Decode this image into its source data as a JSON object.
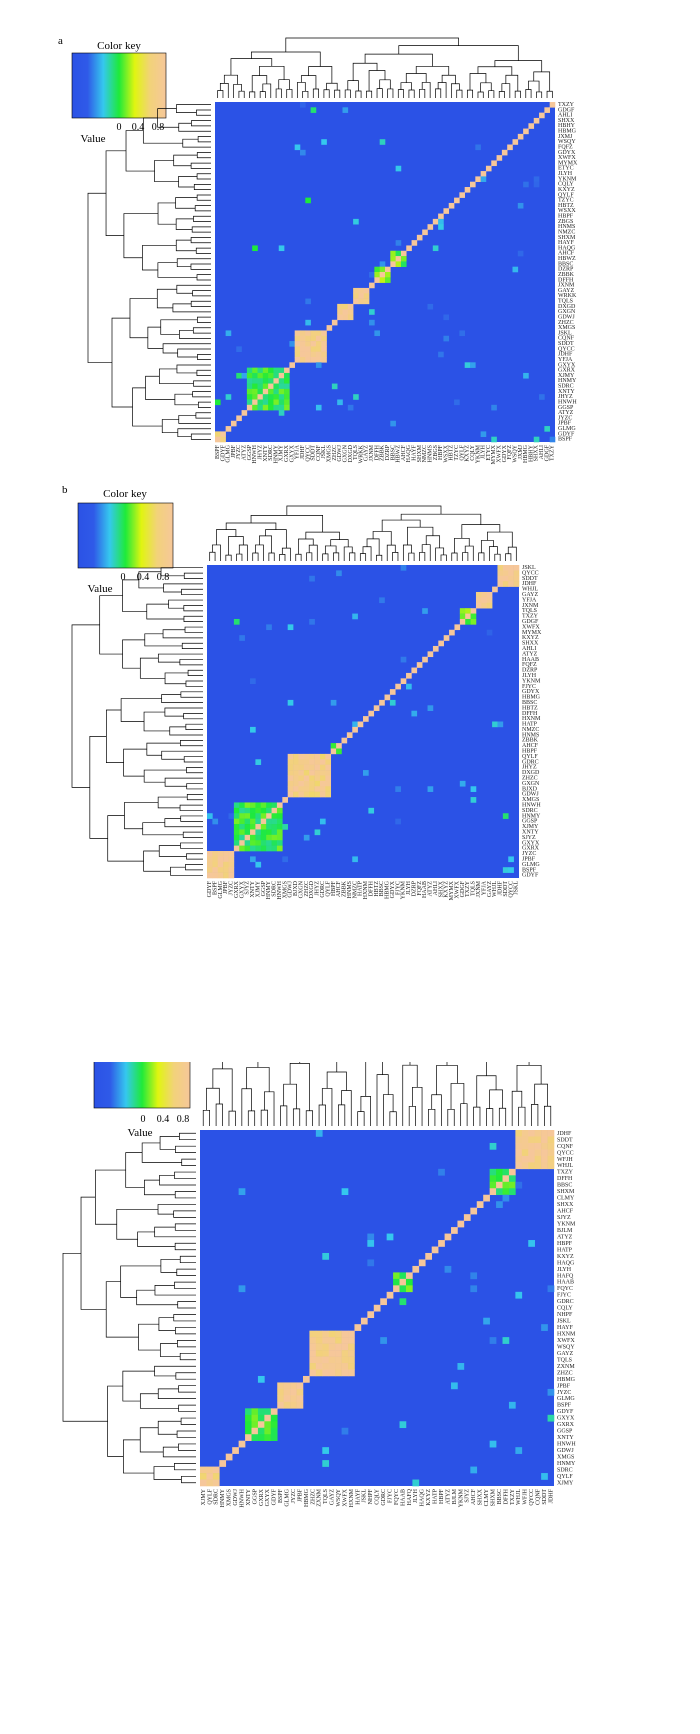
{
  "panels": [
    {
      "panel_label": "a",
      "key_title": "Color key",
      "key_ticks": [
        "0",
        "0.4",
        "0.8"
      ],
      "key_xlabel": "Value",
      "row_labels": [
        "TXZY",
        "GDGF",
        "AHLI",
        "SHXX",
        "HBHY",
        "HBMG",
        "JXMJ",
        "WSQY",
        "FQFZ",
        "GDYX",
        "XWFX",
        "MYMX",
        "ETYC",
        "JLYH",
        "YKNM",
        "CQLY",
        "KXYZ",
        "QYLF",
        "TZYC",
        "HBTZ",
        "WSXX",
        "HBPF",
        "ZBGS",
        "HNMS",
        "NMZC",
        "SHXM",
        "HAYF",
        "HAQG",
        "AHCF",
        "HBWZ",
        "BBSC",
        "DZRP",
        "ZBBK",
        "DFFH",
        "JXNM",
        "GAYZ",
        "WRKK",
        "TQLS",
        "DXGD",
        "GXGN",
        "GDWJ",
        "ZHZC",
        "XMGS",
        "JSKL",
        "CQNF",
        "SDDT",
        "QYCC",
        "JDHF",
        "YFJA",
        "GXYX",
        "GXRX",
        "XJMY",
        "HNMY",
        "SDRC",
        "XNTY",
        "JHYZ",
        "HNWH",
        "GGSP",
        "ATYZ",
        "JYZC",
        "JPBF",
        "GLMG",
        "GDYF",
        "BSPF"
      ],
      "col_labels": [
        "BSPF",
        "GDYF",
        "GLMG",
        "JPBF",
        "JYZC",
        "ATYZ",
        "GGSP",
        "HNWH",
        "JHYZ",
        "XNTY",
        "SDRC",
        "HNMY",
        "XJMY",
        "GXRX",
        "GXYX",
        "YFJA",
        "JDHF",
        "QYCC",
        "SDDT",
        "CQNF",
        "JSKL",
        "XMGS",
        "ZHZC",
        "GDWJ",
        "GXGN",
        "DXGD",
        "TQLS",
        "WRKK",
        "GAYZ",
        "JXNM",
        "DFFH",
        "ZBBK",
        "DZRP",
        "BBSC",
        "HBWZ",
        "AHCF",
        "HAQG",
        "HAYF",
        "SHXM",
        "NMZC",
        "HNMS",
        "ZBGS",
        "HBPF",
        "WSXX",
        "HBTZ",
        "TZYC",
        "QYLF",
        "KXYZ",
        "CQLY",
        "YKNM",
        "JLYH",
        "ETYC",
        "MYMX",
        "XWFX",
        "GDYX",
        "FQFZ",
        "WSQY",
        "JXMJ",
        "HBMG",
        "HBHY",
        "SHXX",
        "AHLI",
        "GDGF",
        "TXZY"
      ]
    },
    {
      "panel_label": "b",
      "key_title": "Color key",
      "key_ticks": [
        "0",
        "0.4",
        "0.8"
      ],
      "key_xlabel": "Value",
      "row_labels": [
        "JSKL",
        "QYCC",
        "SDDT",
        "JDHF",
        "WHJL",
        "GAYZ",
        "YFJA",
        "JXNM",
        "TQLS",
        "TXZY",
        "GDGF",
        "XWFX",
        "MYMX",
        "KXYZ",
        "SHXX",
        "AHLI",
        "ATYZ",
        "HAAB",
        "FQFZ",
        "DZRP",
        "JLYH",
        "YKNM",
        "FJYC",
        "GDYX",
        "HBMG",
        "BBSC",
        "HBTZ",
        "DFFH",
        "HXNM",
        "HATP",
        "NMZC",
        "HNMS",
        "ZBBK",
        "AHCF",
        "HBPF",
        "QYLF",
        "GDRC",
        "JHYZ",
        "DXGD",
        "ZHZC",
        "GXGN",
        "BJXD",
        "GDWJ",
        "XMGS",
        "HNWH",
        "SDRC",
        "HNMY",
        "GGSP",
        "XJMY",
        "XNTY",
        "SJYZ",
        "GXYX",
        "GXRX",
        "JYZC",
        "JPBF",
        "GLMG",
        "BSPF",
        "GDYF"
      ],
      "col_labels": [
        "GDYF",
        "BSPF",
        "GLMG",
        "JPBF",
        "JYZC",
        "GXRX",
        "GXYX",
        "SJYZ",
        "XNTY",
        "XJMY",
        "GGSP",
        "HNMY",
        "SDRC",
        "HNWH",
        "XMGS",
        "GDWJ",
        "BJXD",
        "GXGN",
        "ZHZC",
        "DXGD",
        "JHYZ",
        "GDRC",
        "QYLF",
        "HBPF",
        "AHCF",
        "ZBBK",
        "HNMS",
        "NMZC",
        "HATP",
        "HXNM",
        "DFFH",
        "HBTZ",
        "BBSC",
        "HBMG",
        "GDYX",
        "FJYC",
        "YKNM",
        "JLYH",
        "DZRP",
        "FQFZ",
        "HAAB",
        "ATYZ",
        "AHLI",
        "SHXX",
        "KXYZ",
        "MYMX",
        "XWFX",
        "GDGF",
        "TXZY",
        "TQLS",
        "JXNM",
        "YFJA",
        "GAYZ",
        "WHJL",
        "JDHF",
        "SDDT",
        "QYCC",
        "JSKL"
      ]
    },
    {
      "panel_label": "c",
      "key_title": "",
      "key_ticks": [
        "0",
        "0.4",
        "0.8"
      ],
      "key_xlabel": "Value",
      "row_labels": [
        "JDHF",
        "SDDT",
        "CQNF",
        "QYCC",
        "WFJH",
        "WHJL",
        "TXZY",
        "DFFH",
        "BBSC",
        "SHXM",
        "CLMY",
        "SHXX",
        "AHCF",
        "SJYZ",
        "YKNM",
        "BJLM",
        "ATYZ",
        "HBPF",
        "HATP",
        "KXYZ",
        "HAQG",
        "JLYH",
        "HAFQ",
        "HAAB",
        "FQYC",
        "FJYC",
        "GDRC",
        "CQLY",
        "NHPF",
        "JSKL",
        "HAYF",
        "HXNM",
        "XWFX",
        "WSQY",
        "GAYZ",
        "TQLS",
        "ZXNM",
        "ZHZC",
        "HBMG",
        "JPBF",
        "JYZC",
        "GLMG",
        "BSPF",
        "GDYF",
        "GXYX",
        "GXRX",
        "GGSP",
        "XNTY",
        "HNWH",
        "GDWJ",
        "XMGS",
        "HNMY",
        "SDRC",
        "QYLF",
        "XJMY"
      ],
      "col_labels": [
        "XJMY",
        "QYLF",
        "SDRC",
        "HNMY",
        "XMGS",
        "GDWJ",
        "HNWH",
        "XNTY",
        "GGSP",
        "GXRX",
        "GXYX",
        "GDYF",
        "BSPF",
        "GLMG",
        "JYZC",
        "JPBF",
        "HBMG",
        "ZHZC",
        "ZXNM",
        "TQLS",
        "GAYZ",
        "WSQY",
        "XWFX",
        "HXNM",
        "HAYF",
        "JSKL",
        "NHPF",
        "CQLY",
        "GDRC",
        "FJYC",
        "FQYC",
        "HAAB",
        "HAFQ",
        "JLYH",
        "HAQG",
        "KXYZ",
        "HATP",
        "HBPF",
        "ATYZ",
        "BJLM",
        "YKNM",
        "SJYZ",
        "AHCF",
        "SHXX",
        "CLMY",
        "SHXM",
        "BBSC",
        "DFFH",
        "TXZY",
        "WHJL",
        "WFJH",
        "QYCC",
        "CQNF",
        "SDDT",
        "JDHF"
      ]
    }
  ],
  "chart_data": [
    {
      "type": "heatmap",
      "panel": "a",
      "value_range": [
        0,
        1
      ],
      "colorscale": [
        "#2b52e6",
        "#2f5ae8",
        "#35c8ee",
        "#1eea3a",
        "#e0f510",
        "#f2d27a",
        "#f6c79a"
      ],
      "diagonal_value": 1.0,
      "blocks": [
        {
          "from": "GDYF",
          "to": "BSPF",
          "value": 0.9
        },
        {
          "from": "GXRX",
          "to": "GGSP",
          "value": 0.5
        },
        {
          "from": "JSKL",
          "to": "YFJA",
          "value": 0.92
        },
        {
          "from": "DXGD",
          "to": "GDWJ",
          "value": 0.9
        },
        {
          "from": "GAYZ",
          "to": "TQLS",
          "value": 0.92
        },
        {
          "from": "DZRP",
          "to": "DFFH",
          "value": 0.6
        },
        {
          "from": "AHCF",
          "to": "BBSC",
          "value": 0.55
        }
      ],
      "extra_cells": [
        {
          "row": "HNWH",
          "col": "BSPF",
          "value": 0.5
        },
        {
          "row": "XJMY",
          "col": "JYZC",
          "value": 0.45
        },
        {
          "row": "TZYC",
          "col": "QYCC",
          "value": 0.5
        },
        {
          "row": "HAQG",
          "col": "HNWH",
          "value": 0.5
        },
        {
          "row": "GDGF",
          "col": "SDDT",
          "value": 0.45
        }
      ]
    },
    {
      "type": "heatmap",
      "panel": "b",
      "value_range": [
        0,
        1
      ],
      "colorscale": [
        "#2b52e6",
        "#2f5ae8",
        "#35c8ee",
        "#1eea3a",
        "#e0f510",
        "#f2d27a",
        "#f6c79a"
      ],
      "diagonal_value": 1.0,
      "blocks": [
        {
          "from": "JSKL",
          "to": "JDHF",
          "value": 0.92
        },
        {
          "from": "GAYZ",
          "to": "JXNM",
          "value": 0.9
        },
        {
          "from": "TQLS",
          "to": "GDGF",
          "value": 0.6
        },
        {
          "from": "QYLF",
          "to": "GDWJ",
          "value": 0.9
        },
        {
          "from": "AHCF",
          "to": "HBPF",
          "value": 0.55
        },
        {
          "from": "HNWH",
          "to": "GXRX",
          "value": 0.5
        },
        {
          "from": "JYZC",
          "to": "GDYF",
          "value": 0.92
        }
      ],
      "extra_cells": [
        {
          "row": "GDGF",
          "col": "GXRX",
          "value": 0.45
        },
        {
          "row": "HNMY",
          "col": "SDDT",
          "value": 0.45
        },
        {
          "row": "XJMY",
          "col": "XMGS",
          "value": 0.4
        }
      ]
    },
    {
      "type": "heatmap",
      "panel": "c",
      "value_range": [
        0,
        1
      ],
      "colorscale": [
        "#2b52e6",
        "#2f5ae8",
        "#35c8ee",
        "#1eea3a",
        "#e0f510",
        "#f2d27a",
        "#f6c79a"
      ],
      "diagonal_value": 1.0,
      "blocks": [
        {
          "from": "JDHF",
          "to": "WHJL",
          "value": 0.92
        },
        {
          "from": "TXZY",
          "to": "SHXM",
          "value": 0.5
        },
        {
          "from": "HAFQ",
          "to": "FQYC",
          "value": 0.55
        },
        {
          "from": "HXNM",
          "to": "ZHZC",
          "value": 0.92
        },
        {
          "from": "JPBF",
          "to": "BSPF",
          "value": 0.92
        },
        {
          "from": "GDYF",
          "to": "XNTY",
          "value": 0.5
        },
        {
          "from": "SDRC",
          "to": "XJMY",
          "value": 0.9
        }
      ],
      "extra_cells": [
        {
          "row": "GXYX",
          "col": "JDHF",
          "value": 0.4
        },
        {
          "row": "KXYZ",
          "col": "TQLS",
          "value": 0.35
        },
        {
          "row": "GDRC",
          "col": "HAAB",
          "value": 0.45
        }
      ]
    }
  ]
}
